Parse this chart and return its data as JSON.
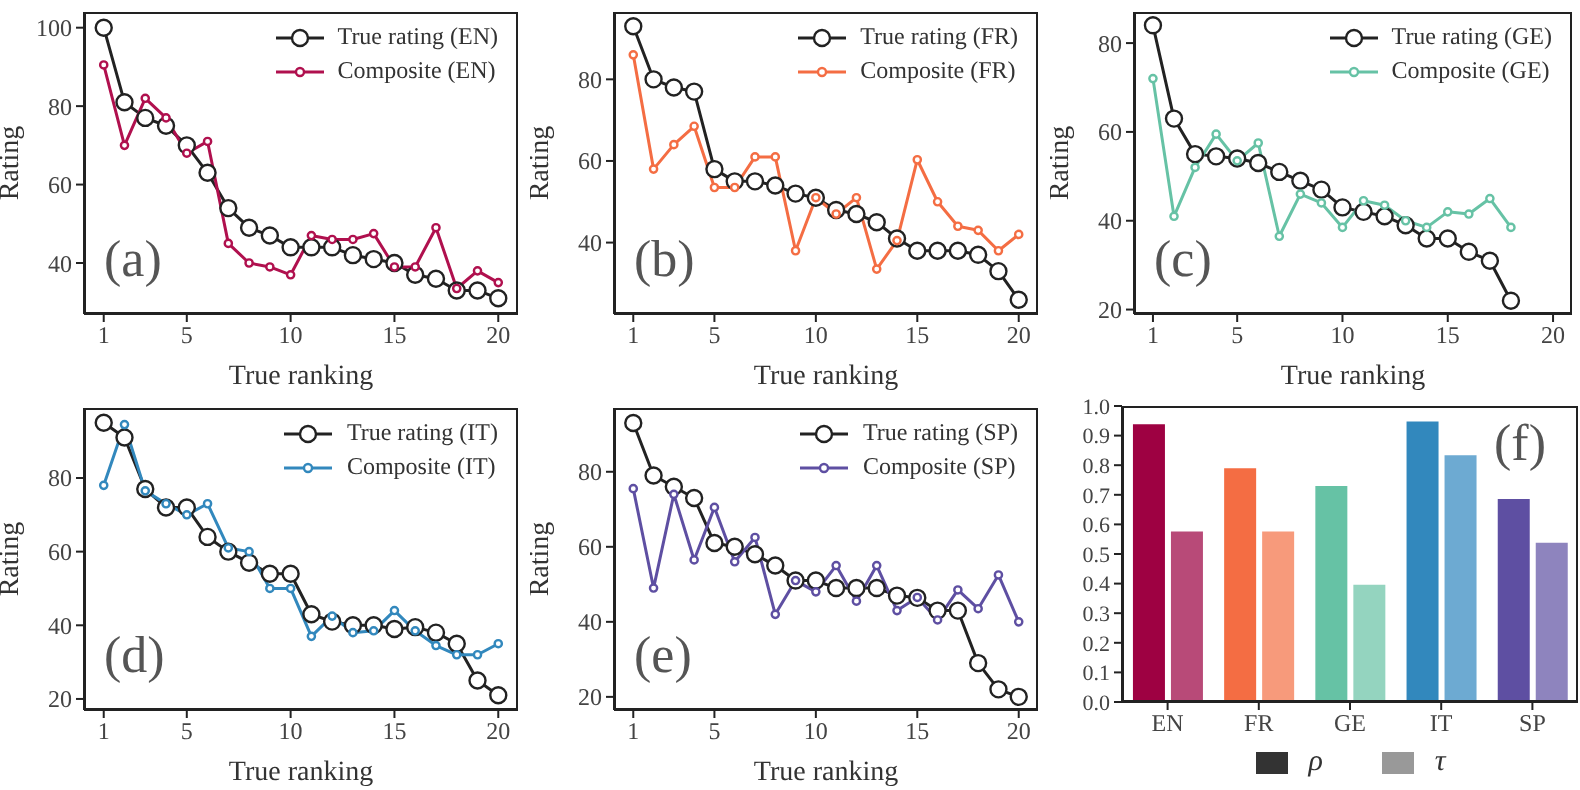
{
  "chart_data": [
    {
      "type": "line",
      "xlabel": "True ranking",
      "ylabel": "Rating",
      "x": [
        1,
        2,
        3,
        4,
        5,
        6,
        7,
        8,
        9,
        10,
        11,
        12,
        13,
        14,
        15,
        16,
        17,
        18,
        19,
        20
      ],
      "xlim": [
        0.05,
        20.95
      ],
      "xticks": [
        1,
        5,
        10,
        15,
        20
      ],
      "ylim": [
        27,
        104
      ],
      "yticks": [
        40,
        60,
        80,
        100
      ],
      "legend": "top right",
      "marker": "circle",
      "annotations": [
        "(a)"
      ],
      "series": [
        {
          "name": "True rating (EN)",
          "color": "#222222",
          "values": [
            100,
            81,
            77,
            75,
            70,
            63,
            54,
            49,
            47,
            44,
            44,
            44,
            42,
            41,
            40,
            37,
            36,
            33,
            33,
            31
          ]
        },
        {
          "name": "Composite (EN)",
          "color": "#b0104e",
          "values": [
            90.5,
            70,
            82,
            77,
            68,
            71,
            45,
            40,
            39,
            37,
            47,
            46,
            46,
            47.5,
            39,
            39,
            49,
            33.5,
            38,
            35
          ]
        }
      ]
    },
    {
      "type": "line",
      "xlabel": "True ranking",
      "ylabel": "Rating",
      "x": [
        1,
        2,
        3,
        4,
        5,
        6,
        7,
        8,
        9,
        10,
        11,
        12,
        13,
        14,
        15,
        16,
        17,
        18,
        19,
        20
      ],
      "xlim": [
        0.05,
        20.95
      ],
      "xticks": [
        1,
        5,
        10,
        15,
        20
      ],
      "ylim": [
        22.5,
        96.5
      ],
      "yticks": [
        40,
        60,
        80
      ],
      "legend": "top right",
      "marker": "circle",
      "annotations": [
        "(b)"
      ],
      "series": [
        {
          "name": "True rating (FR)",
          "color": "#222222",
          "values": [
            93,
            80,
            78,
            77,
            58,
            55,
            55,
            54,
            52,
            51,
            48,
            47,
            45,
            41,
            38,
            38,
            38,
            37,
            33,
            26
          ]
        },
        {
          "name": "Composite (FR)",
          "color": "#f46d43",
          "values": [
            86,
            58,
            64,
            68.5,
            53.5,
            53.5,
            61,
            61,
            38,
            51,
            47,
            51,
            33.5,
            40.5,
            60.3,
            50,
            44,
            43,
            38,
            42
          ]
        }
      ]
    },
    {
      "type": "line",
      "xlabel": "True ranking",
      "ylabel": "Rating",
      "x": [
        1,
        2,
        3,
        4,
        5,
        6,
        7,
        8,
        9,
        10,
        11,
        12,
        13,
        14,
        15,
        16,
        17,
        18
      ],
      "xlim": [
        0.1,
        20.9
      ],
      "xticks": [
        1,
        5,
        10,
        15,
        20
      ],
      "ylim": [
        19,
        87
      ],
      "yticks": [
        20,
        40,
        60,
        80
      ],
      "legend": "top right",
      "marker": "circle",
      "annotations": [
        "(c)"
      ],
      "series": [
        {
          "name": "True rating (GE)",
          "color": "#222222",
          "values": [
            84,
            63,
            55,
            54.5,
            54,
            53,
            51,
            49,
            47,
            43,
            42,
            41,
            39,
            36,
            36,
            33,
            31,
            22
          ]
        },
        {
          "name": "Composite (GE)",
          "color": "#66c2a5",
          "values": [
            72,
            41,
            52,
            59.5,
            53.5,
            57.5,
            36.5,
            46,
            44,
            38.5,
            44.5,
            43.5,
            40,
            38.5,
            42,
            41.5,
            45,
            38.5
          ]
        }
      ]
    },
    {
      "type": "line",
      "xlabel": "True ranking",
      "ylabel": "Rating",
      "x": [
        1,
        2,
        3,
        4,
        5,
        6,
        7,
        8,
        9,
        10,
        11,
        12,
        13,
        14,
        15,
        16,
        17,
        18,
        19,
        20
      ],
      "xlim": [
        0.05,
        20.95
      ],
      "xticks": [
        1,
        5,
        10,
        15,
        20
      ],
      "ylim": [
        17,
        99
      ],
      "yticks": [
        20,
        40,
        60,
        80
      ],
      "legend": "top right",
      "marker": "circle",
      "annotations": [
        "(d)"
      ],
      "series": [
        {
          "name": "True rating (IT)",
          "color": "#222222",
          "values": [
            95,
            91,
            77,
            72,
            72,
            64,
            60,
            57,
            54,
            54,
            43,
            41,
            40,
            40,
            39,
            39.5,
            38,
            35,
            25,
            21
          ]
        },
        {
          "name": "Composite (IT)",
          "color": "#3288bd",
          "values": [
            78,
            94.5,
            76.5,
            73,
            70,
            73,
            61,
            60,
            50,
            50,
            37,
            42.5,
            38,
            38.5,
            44,
            38.5,
            34.5,
            32,
            32,
            35
          ]
        }
      ]
    },
    {
      "type": "line",
      "xlabel": "True ranking",
      "ylabel": "Rating",
      "x": [
        1,
        2,
        3,
        4,
        5,
        6,
        7,
        8,
        9,
        10,
        11,
        12,
        13,
        14,
        15,
        16,
        17,
        18,
        19,
        20
      ],
      "xlim": [
        0.05,
        20.95
      ],
      "xticks": [
        1,
        5,
        10,
        15,
        20
      ],
      "ylim": [
        16.5,
        97
      ],
      "yticks": [
        20,
        40,
        60,
        80
      ],
      "legend": "top right",
      "marker": "circle",
      "annotations": [
        "(e)"
      ],
      "series": [
        {
          "name": "True rating (SP)",
          "color": "#222222",
          "values": [
            93,
            79,
            76,
            73,
            61,
            60,
            58,
            55,
            51,
            51,
            49,
            49,
            49,
            47,
            46.4,
            43,
            43,
            29,
            22,
            20
          ]
        },
        {
          "name": "Composite (SP)",
          "color": "#5e4fa2",
          "values": [
            75.5,
            49,
            74,
            56.5,
            70.5,
            56,
            62.5,
            42,
            51,
            48,
            55,
            45.5,
            55,
            43,
            46.5,
            40.5,
            48.5,
            43.5,
            52.5,
            40
          ]
        }
      ]
    },
    {
      "type": "bar",
      "categories": [
        "EN",
        "FR",
        "GE",
        "IT",
        "SP"
      ],
      "ylim": [
        0,
        1
      ],
      "yticks": [
        {
          "value": 0,
          "label": "0.0"
        },
        {
          "value": 0.1,
          "label": "0.1"
        },
        {
          "value": 0.2,
          "label": "0.2"
        },
        {
          "value": 0.3,
          "label": "0.3"
        },
        {
          "value": 0.4,
          "label": "0.4"
        },
        {
          "value": 0.5,
          "label": "0.5"
        },
        {
          "value": 0.6,
          "label": "0.6"
        },
        {
          "value": 0.7,
          "label": "0.7"
        },
        {
          "value": 0.8,
          "label": "0.8"
        },
        {
          "value": 0.9,
          "label": "0.9"
        },
        {
          "value": 1,
          "label": "1.0"
        }
      ],
      "legend": "bottom",
      "annotations": [
        "(f)"
      ],
      "series": [
        {
          "name": "ρ",
          "color": "#333333",
          "colors": [
            "#9e0142",
            "#f46d43",
            "#66c2a5",
            "#3288bd",
            "#5e4fa2"
          ],
          "values": [
            0.938,
            0.79,
            0.73,
            0.948,
            0.686
          ]
        },
        {
          "name": "τ",
          "color": "#999999",
          "colors": [
            "#b84a78",
            "#f79a7b",
            "#94d4bf",
            "#6daad2",
            "#8e84be"
          ],
          "values": [
            0.576,
            0.576,
            0.396,
            0.834,
            0.538
          ]
        }
      ]
    }
  ]
}
